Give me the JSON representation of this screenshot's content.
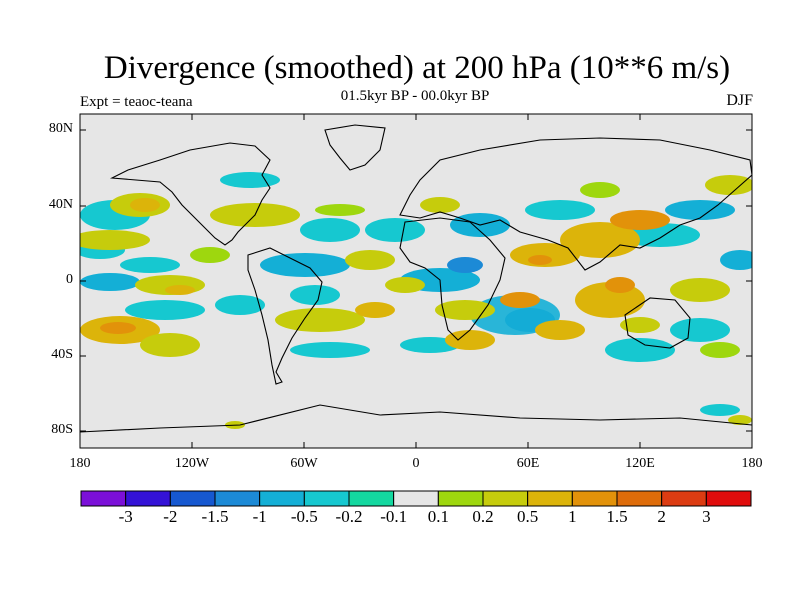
{
  "title": "Divergence (smoothed) at 200 hPa (10**6 m/s)",
  "subtitle": "01.5kyr BP - 00.0kyr BP",
  "experiment": "Expt = teaoc-teana",
  "season": "DJF",
  "lat_labels": [
    "80N",
    "40N",
    "0",
    "40S",
    "80S"
  ],
  "lon_labels": [
    "180",
    "120W",
    "60W",
    "0",
    "60E",
    "120E",
    "180"
  ],
  "colorbar": {
    "labels": [
      "-3",
      "-2",
      "-1.5",
      "-1",
      "-0.5",
      "-0.2",
      "-0.1",
      "0.1",
      "0.2",
      "0.5",
      "1",
      "1.5",
      "2",
      "3"
    ],
    "colors": [
      "#7b10d8",
      "#3412d6",
      "#1658d0",
      "#1c8ad6",
      "#14afd6",
      "#16c8d0",
      "#14d8a0",
      "#e6e6e6",
      "#9ed70e",
      "#c6cc0c",
      "#dcb40a",
      "#e2920a",
      "#de6c0a",
      "#dc3c12",
      "#e00c0c"
    ]
  },
  "colors": {
    "background": "#e6e6e6",
    "land": "#000000"
  }
}
